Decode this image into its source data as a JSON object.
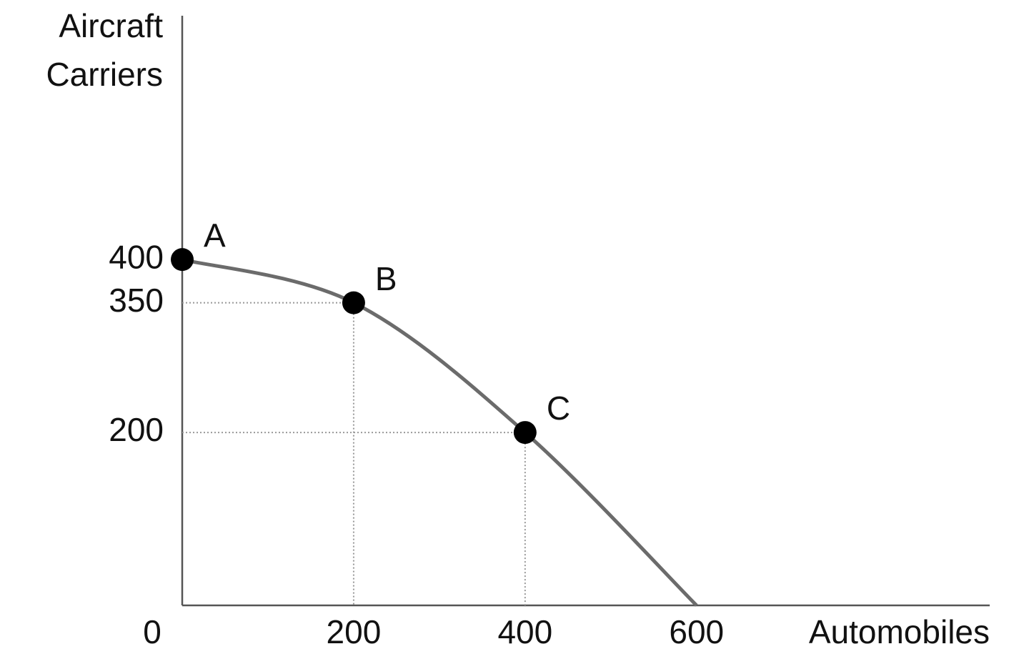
{
  "chart_data": {
    "type": "line",
    "ylabel": [
      "Aircraft",
      "Carriers"
    ],
    "xlabel": "Automobiles",
    "x": [
      0,
      200,
      400,
      600
    ],
    "values": [
      400,
      350,
      200,
      0
    ],
    "point_labels": [
      "A",
      "B",
      "C",
      null
    ],
    "guide_lines": [
      false,
      true,
      true,
      false
    ],
    "color": "#6b6b6b",
    "marker_color": "#000000",
    "smooth": true,
    "xlim": [
      0,
      942
    ],
    "ylim": [
      0,
      682
    ],
    "xticks": [
      0,
      200,
      400,
      600
    ],
    "yticks": [
      200,
      350,
      400
    ]
  }
}
